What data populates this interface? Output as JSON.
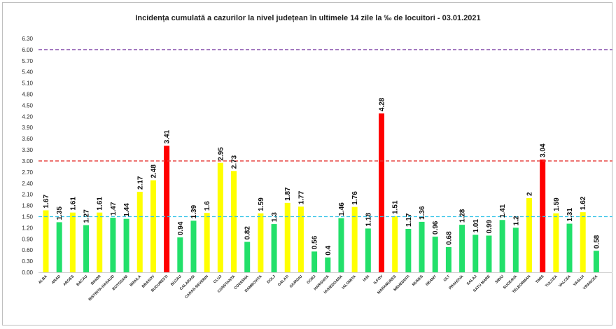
{
  "chart_data": {
    "type": "bar",
    "title": "Incidența cumulată a cazurilor la nivel județean în ultimele 14 zile la ‰ de locuitori - 03.01.2021",
    "ylim": [
      0,
      6.3
    ],
    "ytick_labels": [
      "0.00",
      "0.30",
      "0.60",
      "0.90",
      "1.20",
      "1.50",
      "1.80",
      "2.10",
      "2.40",
      "2.70",
      "3.00",
      "3.30",
      "3.60",
      "3.90",
      "4.20",
      "4.50",
      "4.80",
      "5.10",
      "5.40",
      "5.70",
      "6.00",
      "6.30"
    ],
    "categories": [
      "ALBA",
      "ARAD",
      "ARGES",
      "BACAU",
      "BIHOR",
      "BISTRITA-NASAUD",
      "BOTOSANI",
      "BRAILA",
      "BRASOV",
      "BUCURESTI",
      "BUZAU",
      "CALARASI",
      "CARAS-SEVERIN",
      "CLUJ",
      "CONSTANTA",
      "COVASNA",
      "DAMBOVITA",
      "DOLJ",
      "GALATI",
      "GIURGIU",
      "GORJ",
      "HARGHITA",
      "HUNEDOARA",
      "IALOMITA",
      "IASI",
      "ILFOV",
      "MARAMURES",
      "MEHEDINTI",
      "MURES",
      "NEAMT",
      "OLT",
      "PRAHOVA",
      "SALAJ",
      "SATU MARE",
      "SIBIU",
      "SUCEAVA",
      "TELEORMAN",
      "TIMIS",
      "TULCEA",
      "VALCEA",
      "VASLUI",
      "VRANCEA"
    ],
    "values": [
      1.67,
      1.35,
      1.61,
      1.27,
      1.61,
      1.47,
      1.44,
      2.17,
      2.48,
      3.41,
      0.94,
      1.39,
      1.6,
      2.95,
      2.73,
      0.82,
      1.59,
      1.3,
      1.87,
      1.77,
      0.56,
      0.4,
      1.46,
      1.76,
      1.18,
      4.28,
      1.51,
      1.17,
      1.36,
      0.96,
      0.68,
      1.28,
      1.01,
      0.99,
      1.41,
      1.2,
      2,
      3.04,
      1.59,
      1.31,
      1.62,
      0.58
    ],
    "value_labels": [
      "1.67",
      "1.35",
      "1.61",
      "1.27",
      "1.61",
      "1.47",
      "1.44",
      "2.17",
      "2.48",
      "3.41",
      "0.94",
      "1.39",
      "1.6",
      "2.95",
      "2.73",
      "0.82",
      "1.59",
      "1.3",
      "1.87",
      "1.77",
      "0.56",
      "0.4",
      "1.46",
      "1.76",
      "1.18",
      "4.28",
      "1.51",
      "1.17",
      "1.36",
      "0.96",
      "0.68",
      "1.28",
      "1.01",
      "0.99",
      "1.41",
      "1.2",
      "2",
      "3.04",
      "1.59",
      "1.31",
      "1.62",
      "0.58"
    ],
    "colors": {
      "green": "#22e06a",
      "yellow": "#ffff00",
      "red": "#ff0000"
    },
    "thresholds": [
      {
        "value": 1.5,
        "color": "#33c3e8"
      },
      {
        "value": 3.0,
        "color": "#e53935"
      },
      {
        "value": 6.0,
        "color": "#7b3fa6"
      }
    ],
    "grid": false,
    "legend": "none"
  }
}
